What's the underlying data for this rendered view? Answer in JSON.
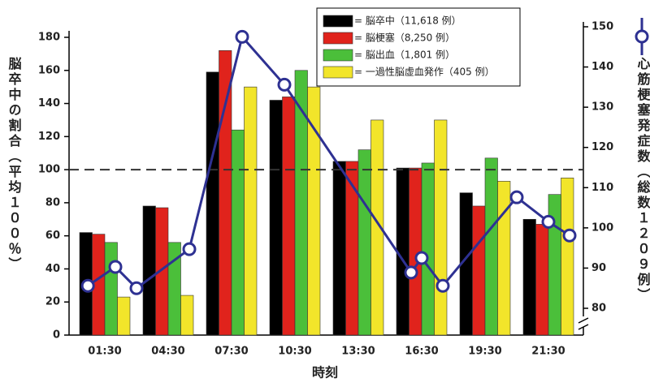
{
  "chart_data": {
    "type": "bar",
    "categories": [
      "01:30",
      "04:30",
      "07:30",
      "10:30",
      "13:30",
      "16:30",
      "19:30",
      "21:30"
    ],
    "series": [
      {
        "name": "= 脳卒中（11,618 例）",
        "color": "#000000",
        "values": [
          62,
          78,
          159,
          142,
          105,
          101,
          86,
          70
        ]
      },
      {
        "name": "= 脳梗塞（8,250 例）",
        "color": "#e0231c",
        "values": [
          61,
          77,
          172,
          144,
          105,
          101,
          78,
          67
        ]
      },
      {
        "name": "= 脳出血（1,801 例）",
        "color": "#4bbf3a",
        "values": [
          56,
          56,
          124,
          160,
          112,
          104,
          107,
          85
        ]
      },
      {
        "name": "= 一過性脳虚血発作（405 例）",
        "color": "#f2e52a",
        "values": [
          23,
          24,
          150,
          150,
          130,
          130,
          93,
          95
        ]
      },
      {
        "type": "line",
        "axis": "y2",
        "color": "#2e3192",
        "x": [
          0.7,
          2,
          3,
          5.5,
          8,
          10,
          16,
          16.5,
          17.5,
          21,
          22.5,
          23.5
        ],
        "values": [
          85.6,
          90.3,
          85,
          94.7,
          147.5,
          135.6,
          88.9,
          92.5,
          85.6,
          107.6,
          101.5,
          98.1
        ]
      }
    ],
    "xlim": [
      0,
      24
    ],
    "ylim": [
      0,
      180
    ],
    "yticks": [
      0,
      20,
      40,
      60,
      80,
      100,
      120,
      140,
      160,
      180
    ],
    "y2lim": [
      80,
      150
    ],
    "y2ticks": [
      80,
      90,
      100,
      110,
      120,
      130,
      140,
      150
    ],
    "reference_line": 100,
    "xlabel": "時刻",
    "ylabel": "脳卒中の割合（平均１００％）",
    "y2label": "心筋梗塞発症数（総数１２０９例）",
    "legend": "top-right"
  }
}
